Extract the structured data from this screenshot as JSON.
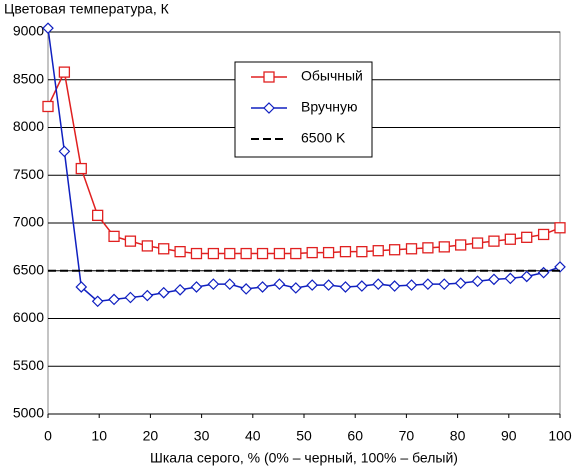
{
  "chart_data": {
    "type": "line",
    "title": "Цветовая температура, К",
    "x_label": "Шкала серого, % (0% – черный, 100% – белый)",
    "x": [
      0,
      3.2,
      6.5,
      9.7,
      12.9,
      16.1,
      19.4,
      22.6,
      25.8,
      29,
      32.3,
      35.5,
      38.7,
      41.9,
      45.2,
      48.4,
      51.6,
      54.8,
      58.1,
      61.3,
      64.5,
      67.7,
      71,
      74.2,
      77.4,
      80.6,
      83.9,
      87.1,
      90.3,
      93.5,
      96.8,
      100
    ],
    "series": [
      {
        "name": "Обычный",
        "color": "#e02020",
        "marker": "square",
        "values": [
          8220,
          8580,
          7570,
          7080,
          6860,
          6810,
          6760,
          6730,
          6700,
          6680,
          6680,
          6680,
          6680,
          6680,
          6680,
          6680,
          6690,
          6690,
          6700,
          6700,
          6710,
          6720,
          6730,
          6740,
          6750,
          6770,
          6790,
          6810,
          6830,
          6850,
          6880,
          6950
        ]
      },
      {
        "name": "Вручную",
        "color": "#1020c0",
        "marker": "diamond",
        "values": [
          9040,
          7750,
          6330,
          6180,
          6200,
          6220,
          6240,
          6270,
          6300,
          6330,
          6360,
          6360,
          6310,
          6330,
          6360,
          6320,
          6350,
          6350,
          6330,
          6340,
          6360,
          6340,
          6350,
          6360,
          6360,
          6370,
          6390,
          6410,
          6420,
          6440,
          6480,
          6540
        ]
      },
      {
        "name": "6500 K",
        "color": "#000000",
        "dashed": true,
        "values": [
          6500,
          6500,
          6500,
          6500,
          6500,
          6500,
          6500,
          6500,
          6500,
          6500,
          6500,
          6500,
          6500,
          6500,
          6500,
          6500,
          6500,
          6500,
          6500,
          6500,
          6500,
          6500,
          6500,
          6500,
          6500,
          6500,
          6500,
          6500,
          6500,
          6500,
          6500,
          6500
        ]
      }
    ],
    "xlim": [
      0,
      100
    ],
    "xticks": [
      0,
      10,
      20,
      30,
      40,
      50,
      60,
      70,
      80,
      90,
      100
    ],
    "ylim": [
      5000,
      9000
    ],
    "yticks": [
      5000,
      5500,
      6000,
      6500,
      7000,
      7500,
      8000,
      8500,
      9000
    ],
    "grid": true
  }
}
